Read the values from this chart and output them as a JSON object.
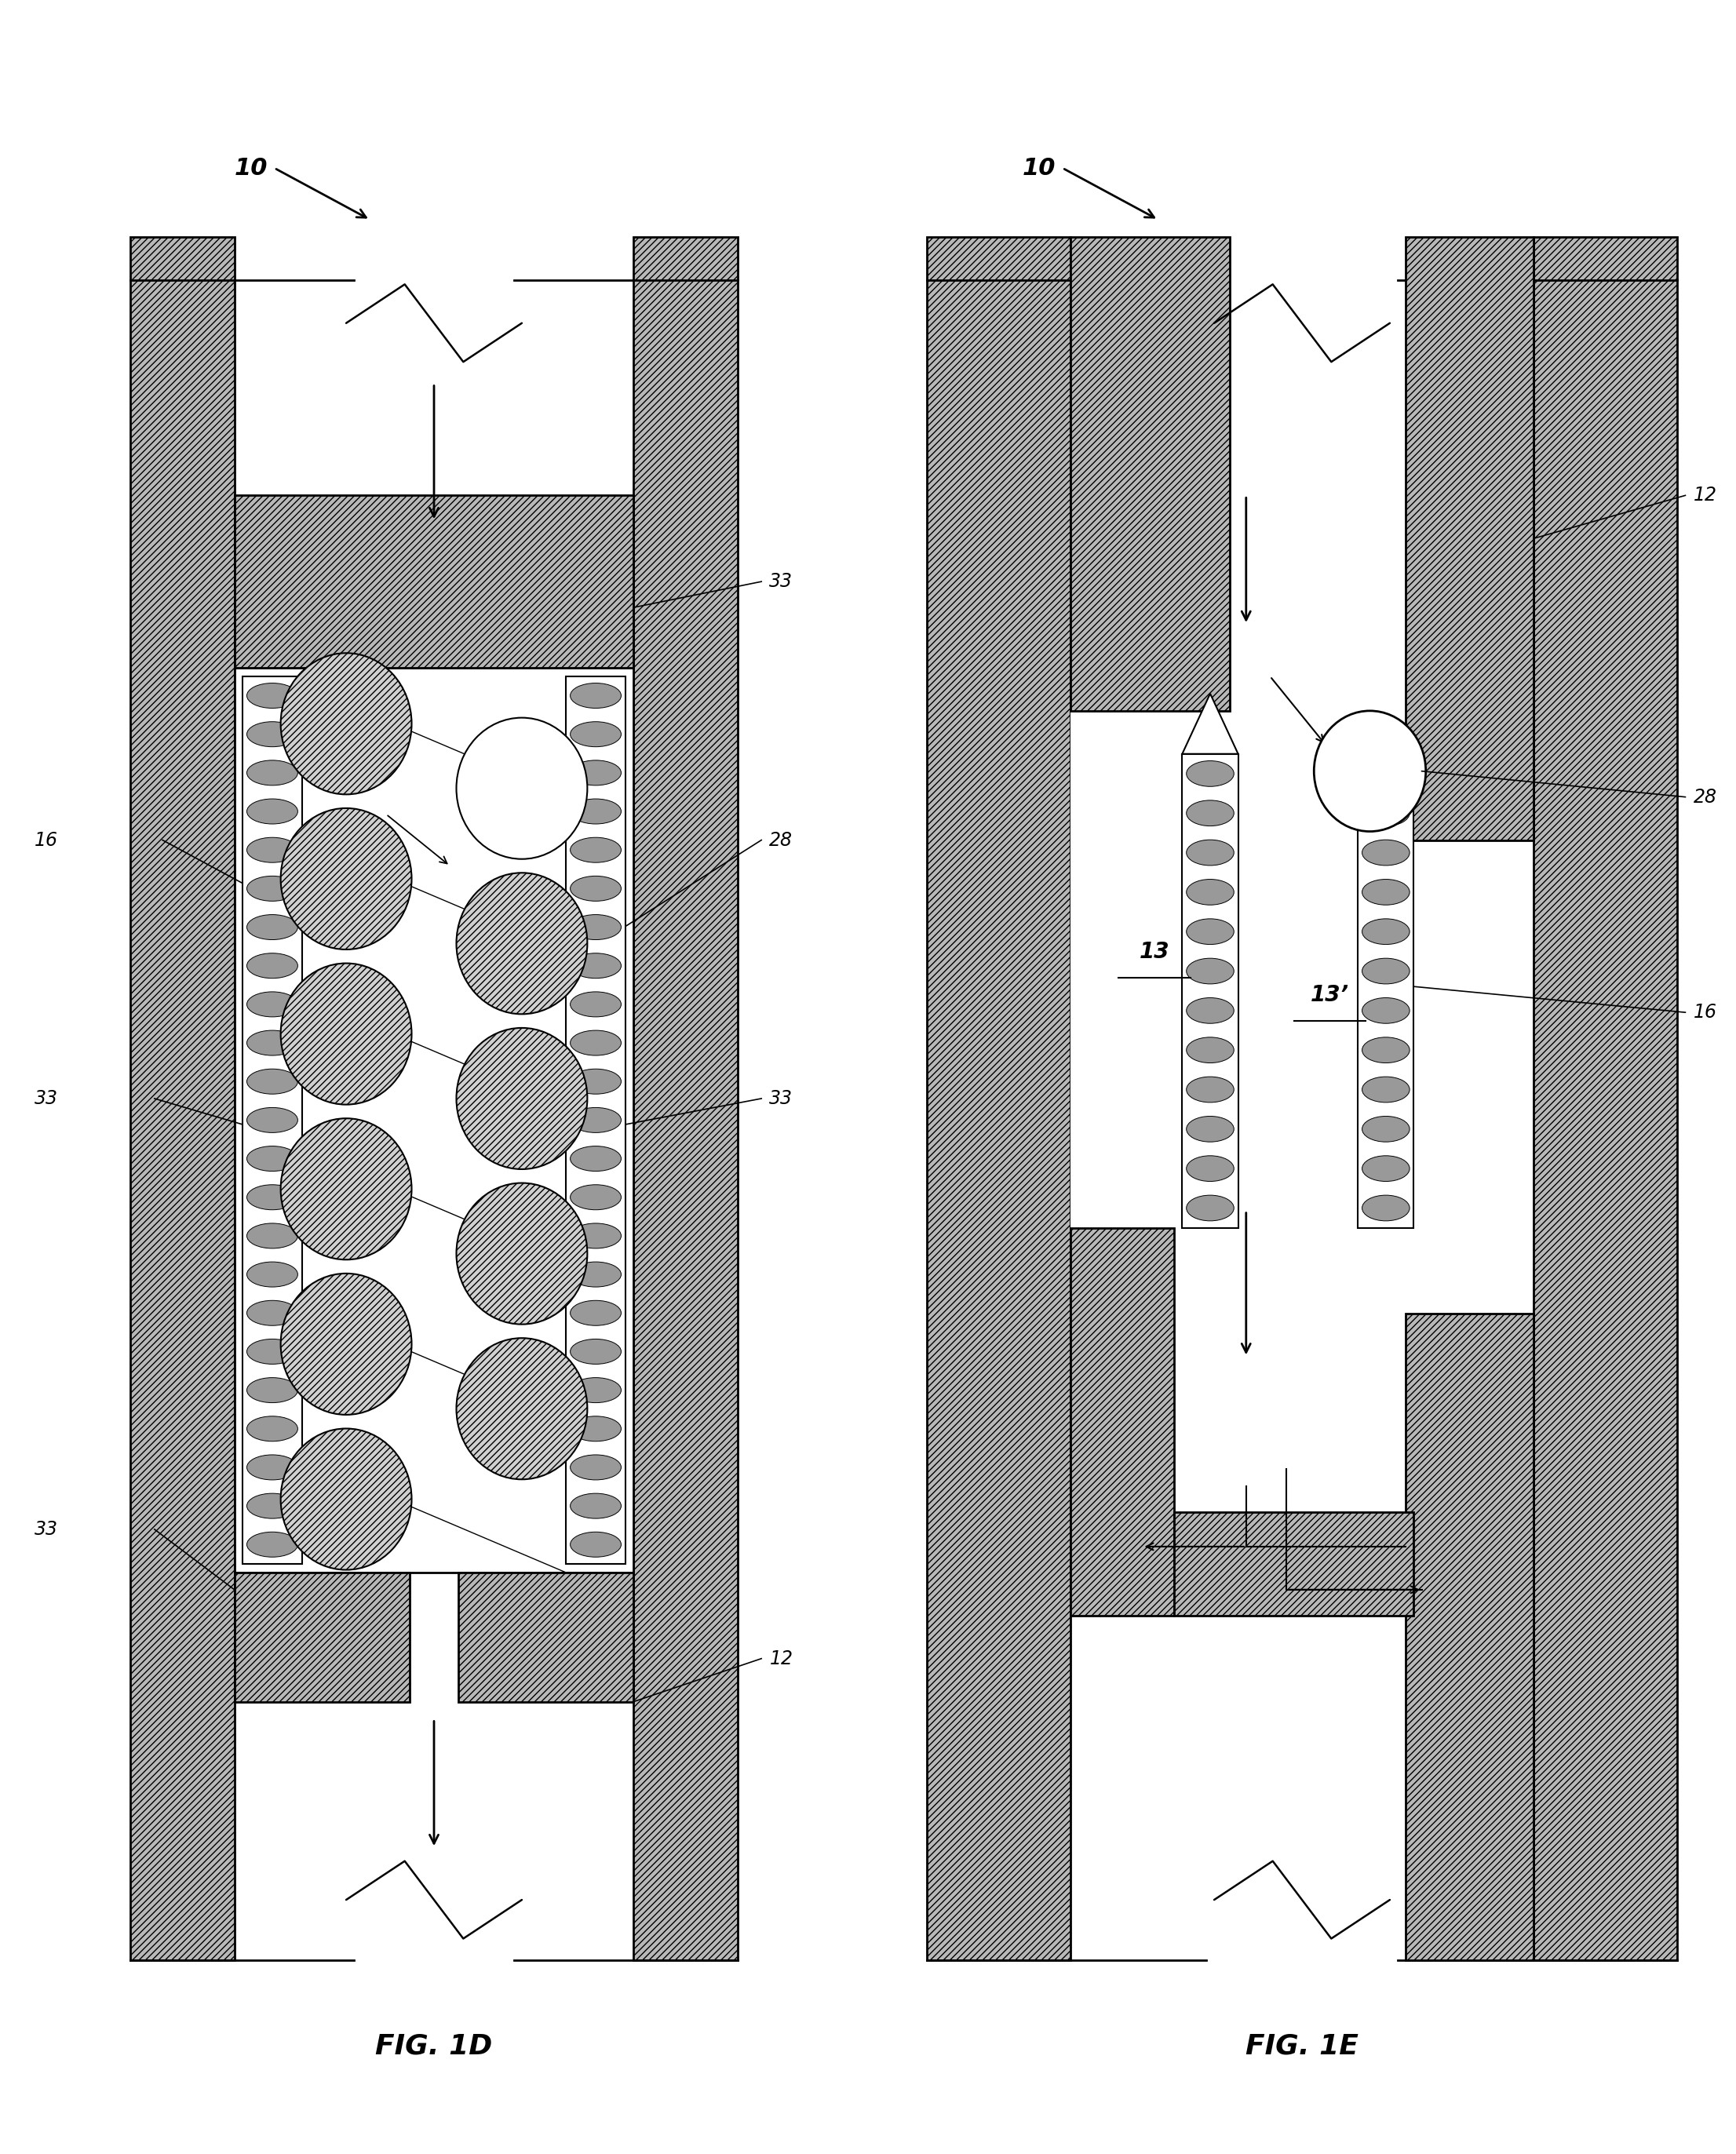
{
  "fig_width": 22.12,
  "fig_height": 27.45,
  "background_color": "#ffffff",
  "fig1d_label": "FIG. 1D",
  "fig1e_label": "FIG. 1E",
  "ref_10": "10",
  "ref_12": "12",
  "ref_16": "16",
  "ref_28": "28",
  "ref_33": "33",
  "ref_13": "13",
  "ref_13p": "13’",
  "hatch_gray": "#b8b8b8",
  "hatch_pattern": "////",
  "lw_thick": 2.0,
  "lw_med": 1.5,
  "lw_thin": 1.0
}
